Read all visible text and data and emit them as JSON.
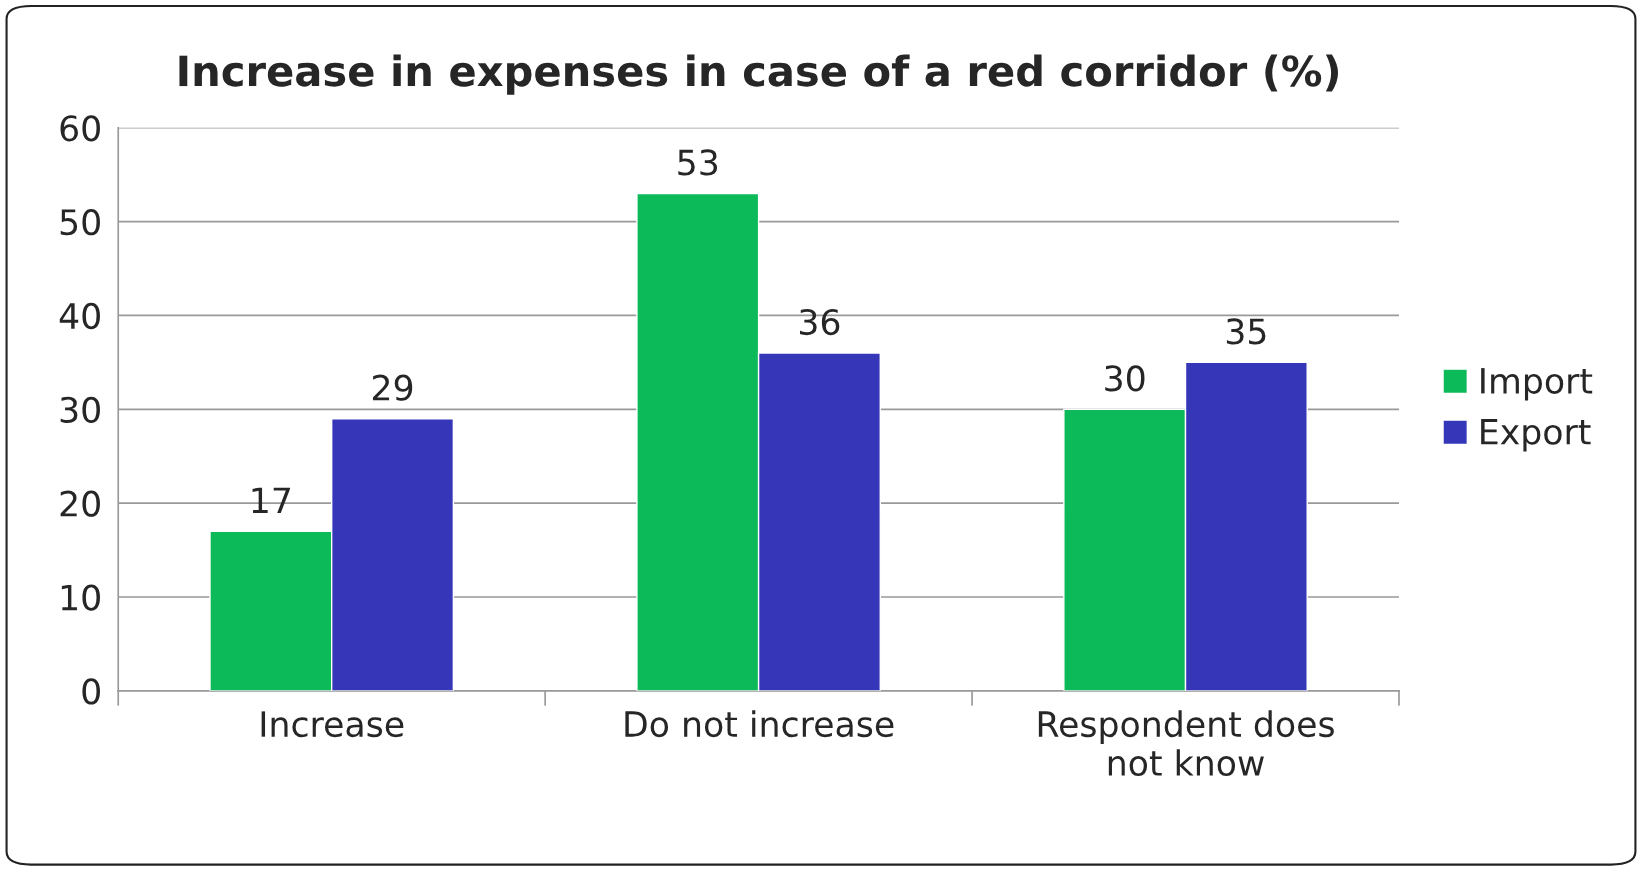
{
  "chart_data": {
    "type": "bar",
    "title": "Increase in expenses in case of a red corridor (%)",
    "categories": [
      "Increase",
      "Do not increase",
      "Respondent does\nnot know"
    ],
    "series": [
      {
        "name": "Import",
        "color": "#0dba5a",
        "values": [
          17,
          53,
          30
        ]
      },
      {
        "name": "Export",
        "color": "#3636b8",
        "values": [
          29,
          36,
          35
        ]
      }
    ],
    "ylim": [
      0,
      60
    ],
    "yticks": [
      0,
      10,
      20,
      30,
      40,
      50,
      60
    ],
    "grid": "y",
    "legend": "right",
    "data_labels": true
  }
}
